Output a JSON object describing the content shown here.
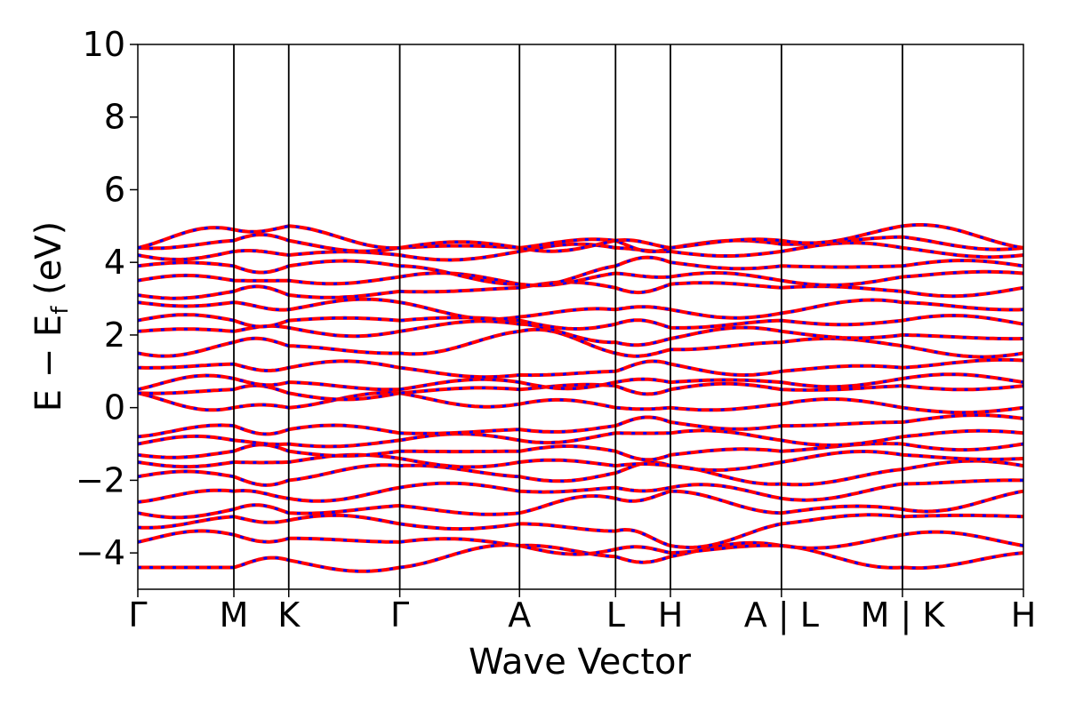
{
  "chart_data": {
    "type": "line",
    "xlabel": "Wave Vector",
    "ylabel": "E − E",
    "ylabel_sub": "f",
    "ylabel_unit": " (eV)",
    "ylim": [
      -5,
      10
    ],
    "yticks": [
      -4,
      -2,
      0,
      2,
      4,
      6,
      8,
      10
    ],
    "ytick_labels": [
      "−4",
      "−2",
      "0",
      "2",
      "4",
      "6",
      "8",
      "10"
    ],
    "kpath_positions": [
      0,
      0.77,
      1.21,
      2.1,
      3.06,
      3.83,
      4.27,
      5.16,
      6.13,
      7.1
    ],
    "kpath_labels": [
      "Γ",
      "M",
      "K",
      "Γ",
      "A",
      "L",
      "H",
      "A | L",
      "M | K",
      "H"
    ],
    "x_range": [
      0,
      7.1
    ],
    "series": [
      {
        "color": "#ff0000",
        "style": "solid",
        "bands_at_high_symmetry_points": [
          [
            -4.4,
            -4.4,
            -4.2,
            -4.4,
            -3.8,
            -4.1,
            -4.1,
            -3.8,
            -4.4,
            -4.0
          ],
          [
            -3.7,
            -3.5,
            -3.6,
            -3.7,
            -3.8,
            -3.9,
            -4.0,
            -3.8,
            -3.5,
            -3.8
          ],
          [
            -3.3,
            -3.0,
            -3.1,
            -3.2,
            -3.2,
            -3.4,
            -3.8,
            -3.2,
            -3.0,
            -3.0
          ],
          [
            -2.9,
            -2.8,
            -2.9,
            -2.7,
            -2.9,
            -2.5,
            -2.3,
            -2.9,
            -2.8,
            -2.3
          ],
          [
            -2.6,
            -2.3,
            -2.5,
            -2.2,
            -2.3,
            -2.2,
            -2.2,
            -2.5,
            -2.1,
            -2.0
          ],
          [
            -1.9,
            -1.9,
            -2.0,
            -1.6,
            -1.9,
            -1.8,
            -1.6,
            -2.1,
            -1.7,
            -1.6
          ],
          [
            -1.5,
            -1.5,
            -1.5,
            -1.4,
            -1.5,
            -1.6,
            -1.6,
            -1.5,
            -1.3,
            -1.4
          ],
          [
            -1.3,
            -1.2,
            -1.2,
            -1.2,
            -1.2,
            -1.2,
            -1.3,
            -1.2,
            -1.0,
            -1.0
          ],
          [
            -1.0,
            -0.9,
            -1.0,
            -0.9,
            -0.9,
            -0.7,
            -0.7,
            -0.9,
            -0.8,
            -0.7
          ],
          [
            -0.8,
            -0.5,
            -0.6,
            -0.7,
            -0.6,
            -0.5,
            -0.4,
            -0.5,
            -0.4,
            -0.3
          ],
          [
            0.4,
            0.0,
            0.0,
            0.4,
            0.1,
            0.0,
            0.0,
            0.1,
            0.0,
            0.0
          ],
          [
            0.4,
            0.5,
            0.4,
            0.4,
            0.5,
            0.6,
            0.5,
            0.5,
            0.6,
            0.6
          ],
          [
            0.5,
            0.8,
            0.7,
            0.5,
            0.7,
            0.7,
            0.7,
            0.7,
            0.8,
            0.7
          ],
          [
            1.1,
            1.2,
            1.1,
            1.1,
            0.9,
            1.0,
            1.2,
            1.0,
            1.1,
            1.3
          ],
          [
            1.5,
            1.8,
            1.7,
            1.5,
            2.1,
            1.5,
            1.6,
            1.8,
            1.7,
            1.5
          ],
          [
            2.1,
            2.1,
            2.2,
            2.1,
            2.3,
            1.8,
            1.9,
            2.1,
            2.0,
            1.9
          ],
          [
            2.4,
            2.4,
            2.4,
            2.4,
            2.4,
            2.3,
            2.2,
            2.4,
            2.4,
            2.3
          ],
          [
            2.9,
            2.9,
            2.7,
            2.9,
            2.5,
            2.7,
            2.7,
            2.6,
            2.9,
            2.7
          ],
          [
            3.1,
            3.2,
            3.1,
            3.2,
            3.3,
            3.3,
            3.4,
            3.3,
            3.2,
            3.3
          ],
          [
            3.5,
            3.5,
            3.5,
            3.6,
            3.4,
            3.7,
            3.6,
            3.5,
            3.6,
            3.7
          ],
          [
            3.9,
            3.9,
            3.9,
            3.9,
            3.4,
            3.9,
            4.0,
            3.9,
            3.9,
            3.9
          ],
          [
            4.2,
            4.3,
            4.2,
            4.2,
            4.3,
            4.4,
            4.3,
            4.3,
            4.4,
            4.2
          ],
          [
            4.4,
            4.6,
            4.6,
            4.4,
            4.4,
            4.6,
            4.4,
            4.5,
            4.7,
            4.4
          ],
          [
            4.4,
            4.9,
            5.0,
            4.4,
            4.4,
            4.6,
            4.4,
            4.6,
            5.0,
            4.4
          ]
        ]
      },
      {
        "color": "#0000ff",
        "style": "dashed",
        "same_bands_as": 0
      }
    ]
  }
}
